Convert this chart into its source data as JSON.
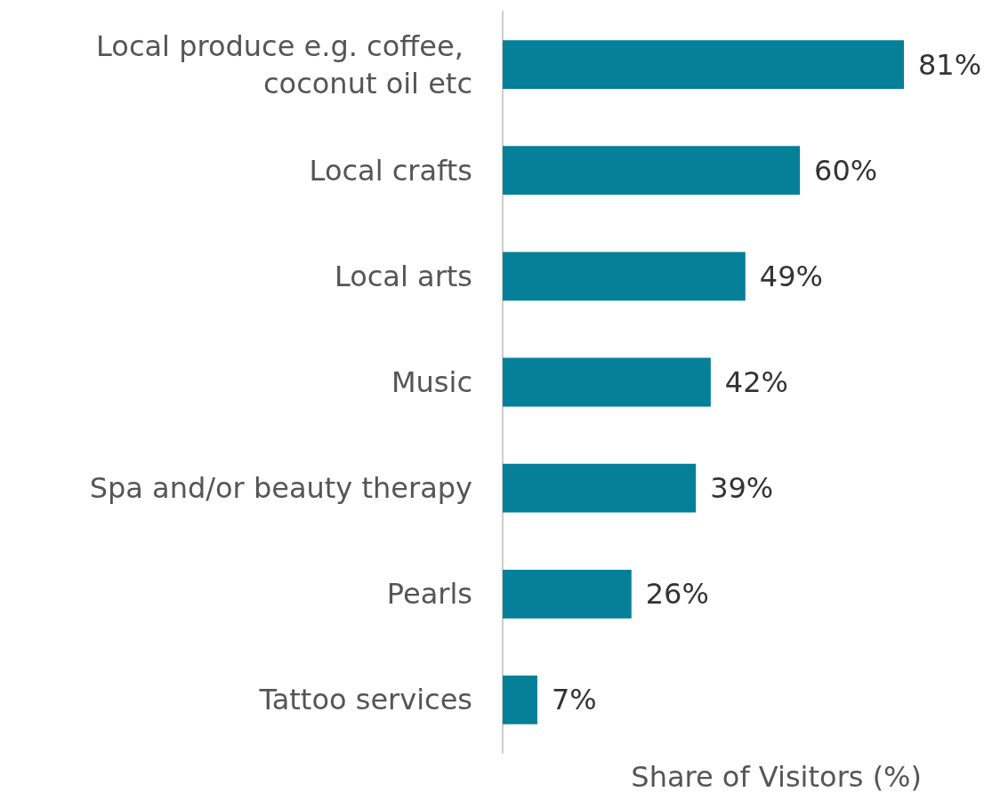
{
  "chart_data": {
    "type": "bar",
    "orientation": "horizontal",
    "xlabel": "Share of Visitors (%)",
    "categories": [
      "Local produce e.g. coffee, coconut oil etc",
      "Local crafts",
      "Local arts",
      "Music",
      "Spa and/or beauty therapy",
      "Pearls",
      "Tattoo services"
    ],
    "values": [
      81,
      60,
      49,
      42,
      39,
      26,
      7
    ],
    "value_labels": [
      "81%",
      "60%",
      "49%",
      "42%",
      "39%",
      "26%",
      "7%"
    ],
    "color": "#067f99"
  }
}
